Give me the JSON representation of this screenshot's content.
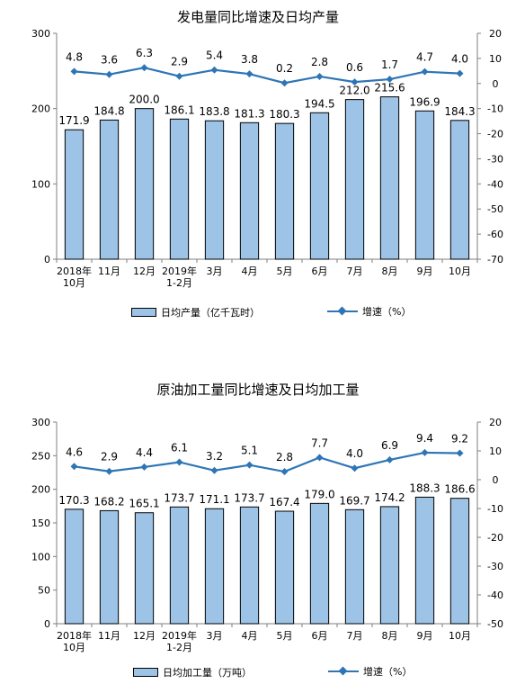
{
  "colors": {
    "bar_fill": "#9dc3e6",
    "bar_stroke": "#000000",
    "line": "#2e75b6",
    "axis": "#7f7f7f"
  },
  "chart_data": [
    {
      "type": "bar+line",
      "title": "发电量同比增速及日均产量",
      "categories": [
        "2018年|10月",
        "11月",
        "12月",
        "2019年|1-2月",
        "3月",
        "4月",
        "5月",
        "6月",
        "7月",
        "8月",
        "9月",
        "10月"
      ],
      "series": [
        {
          "name": "日均产量（亿千瓦时）",
          "type": "bar",
          "axis": "left",
          "values": [
            171.9,
            184.8,
            200.0,
            186.1,
            183.8,
            181.3,
            180.3,
            194.5,
            212.0,
            215.6,
            196.9,
            184.3
          ],
          "labels": [
            "171.9",
            "184.8",
            "200.0",
            "186.1",
            "183.8",
            "181.3",
            "180.3",
            "194.5",
            "212.0",
            "215.6",
            "196.9",
            "184.3"
          ]
        },
        {
          "name": "增速（%）",
          "type": "line",
          "axis": "right",
          "values": [
            4.8,
            3.6,
            6.3,
            2.9,
            5.4,
            3.8,
            0.2,
            2.8,
            0.6,
            1.7,
            4.7,
            4.0
          ],
          "labels": [
            "4.8",
            "3.6",
            "6.3",
            "2.9",
            "5.4",
            "3.8",
            "0.2",
            "2.8",
            "0.6",
            "1.7",
            "4.7",
            "4.0"
          ]
        }
      ],
      "y_left": {
        "min": 0,
        "max": 300,
        "ticks": [
          0,
          100,
          200,
          300
        ],
        "tick_labels": [
          "0",
          "100",
          "200",
          "300"
        ]
      },
      "y_right": {
        "min": -70,
        "max": 20,
        "ticks": [
          20,
          10,
          0,
          -10,
          -20,
          -30,
          -40,
          -50,
          -60,
          -70
        ],
        "tick_labels": [
          "20",
          "10",
          "0",
          "-10",
          "-20",
          "-30",
          "-40",
          "-50",
          "-60",
          "-70"
        ]
      },
      "grid": false,
      "legend_position": "bottom"
    },
    {
      "type": "bar+line",
      "title": "原油加工量同比增速及日均加工量",
      "categories": [
        "2018年|10月",
        "11月",
        "12月",
        "2019年|1-2月",
        "3月",
        "4月",
        "5月",
        "6月",
        "7月",
        "8月",
        "9月",
        "10月"
      ],
      "series": [
        {
          "name": "日均加工量（万吨）",
          "type": "bar",
          "axis": "left",
          "values": [
            170.3,
            168.2,
            165.1,
            173.7,
            171.1,
            173.7,
            167.4,
            179.0,
            169.7,
            174.2,
            188.3,
            186.6
          ],
          "labels": [
            "170.3",
            "168.2",
            "165.1",
            "173.7",
            "171.1",
            "173.7",
            "167.4",
            "179.0",
            "169.7",
            "174.2",
            "188.3",
            "186.6"
          ]
        },
        {
          "name": "增速（%）",
          "type": "line",
          "axis": "right",
          "values": [
            4.6,
            2.9,
            4.4,
            6.1,
            3.2,
            5.1,
            2.8,
            7.7,
            4.0,
            6.9,
            9.4,
            9.2
          ],
          "labels": [
            "4.6",
            "2.9",
            "4.4",
            "6.1",
            "3.2",
            "5.1",
            "2.8",
            "7.7",
            "4.0",
            "6.9",
            "9.4",
            "9.2"
          ]
        }
      ],
      "y_left": {
        "min": 0,
        "max": 300,
        "ticks": [
          0,
          50,
          100,
          150,
          200,
          250,
          300
        ],
        "tick_labels": [
          "0",
          "50",
          "100",
          "150",
          "200",
          "250",
          "300"
        ]
      },
      "y_right": {
        "min": -50,
        "max": 20,
        "ticks": [
          20,
          10,
          0,
          -10,
          -20,
          -30,
          -40,
          -50
        ],
        "tick_labels": [
          "20",
          "10",
          "0",
          "-10",
          "-20",
          "-30",
          "-40",
          "-50"
        ]
      },
      "grid": false,
      "legend_position": "bottom"
    }
  ]
}
